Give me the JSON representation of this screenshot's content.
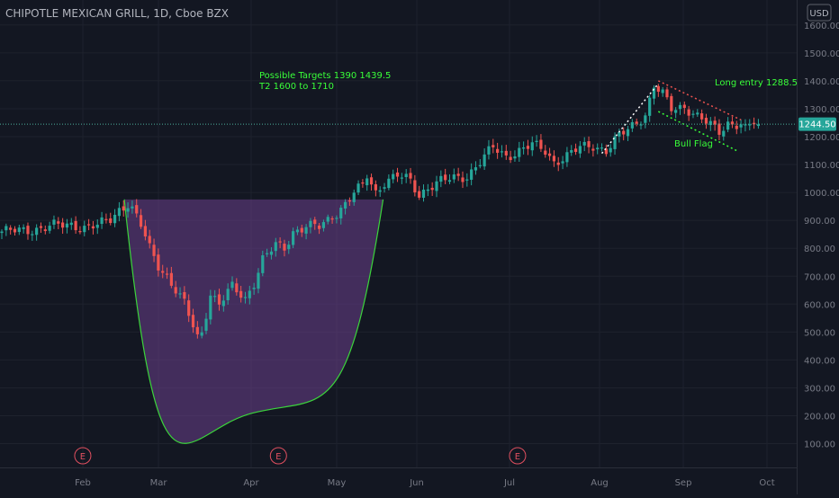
{
  "header": {
    "symbol_title": "CHIPOTLE MEXICAN GRILL, 1D, Cboe BZX"
  },
  "currency_badge": "USD",
  "last_price_label": "1244.50",
  "annotations": {
    "targets_line1": "Possible Targets  1390    1439.5",
    "targets_line2": "T2  1600 to 1710",
    "long_entry": "Long entry 1288.5",
    "bull_flag": "Bull Flag"
  },
  "earnings_marker": "E",
  "colors": {
    "background": "#131722",
    "up_candle": "#26a69a",
    "down_candle": "#ef5350",
    "cup_fill": "#6b3f8c",
    "cup_line": "#3bd43b",
    "annotation_text": "#39ff39",
    "price_badge": "#26a69a",
    "earnings_marker": "#e04f5f"
  },
  "chart_data": {
    "type": "candlestick",
    "title": "CHIPOTLE MEXICAN GRILL, 1D, Cboe BZX",
    "y_axis_ticks": [
      100,
      200,
      300,
      400,
      500,
      600,
      700,
      800,
      900,
      1000,
      1100,
      1200,
      1300,
      1400,
      1500,
      1600
    ],
    "y_tick_labels": [
      "100.00",
      "200.00",
      "300.00",
      "400.00",
      "500.00",
      "600.00",
      "700.00",
      "800.00",
      "900.00",
      "1000.00",
      "1100.00",
      "1200.00",
      "1300.00",
      "1400.00",
      "1500.00",
      "1600.00"
    ],
    "x_tick_labels": [
      "Feb",
      "Mar",
      "Apr",
      "May",
      "Jun",
      "Jul",
      "Aug",
      "Sep",
      "Oct"
    ],
    "ylim": [
      50,
      1660
    ],
    "last_price": 1244.5,
    "grid": true,
    "series_close_path": [
      [
        0,
        860
      ],
      [
        4,
        862
      ],
      [
        8,
        870
      ],
      [
        12,
        880
      ],
      [
        16,
        885
      ],
      [
        19,
        875
      ],
      [
        22,
        880
      ],
      [
        25,
        905
      ],
      [
        27,
        940
      ],
      [
        29,
        960
      ],
      [
        30,
        940
      ],
      [
        32,
        880
      ],
      [
        34,
        800
      ],
      [
        36,
        740
      ],
      [
        38,
        700
      ],
      [
        40,
        650
      ],
      [
        42,
        600
      ],
      [
        43,
        560
      ],
      [
        45,
        480
      ],
      [
        46,
        500
      ],
      [
        48,
        640
      ],
      [
        50,
        600
      ],
      [
        53,
        660
      ],
      [
        56,
        620
      ],
      [
        58,
        680
      ],
      [
        60,
        760
      ],
      [
        63,
        810
      ],
      [
        65,
        800
      ],
      [
        67,
        860
      ],
      [
        70,
        880
      ],
      [
        73,
        875
      ],
      [
        75,
        900
      ],
      [
        77,
        930
      ],
      [
        79,
        960
      ],
      [
        81,
        1000
      ],
      [
        83,
        1020
      ],
      [
        84,
        1060
      ],
      [
        86,
        1000
      ],
      [
        88,
        1040
      ],
      [
        91,
        1060
      ],
      [
        94,
        1040
      ],
      [
        96,
        990
      ],
      [
        98,
        1020
      ],
      [
        101,
        1040
      ],
      [
        104,
        1050
      ],
      [
        107,
        1060
      ],
      [
        110,
        1110
      ],
      [
        113,
        1160
      ],
      [
        116,
        1130
      ],
      [
        119,
        1150
      ],
      [
        122,
        1170
      ],
      [
        125,
        1150
      ],
      [
        127,
        1110
      ],
      [
        130,
        1130
      ],
      [
        133,
        1160
      ],
      [
        136,
        1170
      ],
      [
        139,
        1150
      ],
      [
        142,
        1200
      ],
      [
        145,
        1240
      ],
      [
        148,
        1280
      ],
      [
        150,
        1380
      ],
      [
        152,
        1350
      ],
      [
        154,
        1300
      ],
      [
        157,
        1310
      ],
      [
        160,
        1270
      ],
      [
        163,
        1240
      ],
      [
        165,
        1220
      ],
      [
        167,
        1250
      ],
      [
        169,
        1244
      ]
    ],
    "cup": {
      "left": [
        29,
        975
      ],
      "bottom": [
        54,
        210
      ],
      "right": [
        79,
        975
      ]
    },
    "flagpole": {
      "start": [
        138,
        1140
      ],
      "end": [
        151,
        1390
      ]
    },
    "flag_upper": {
      "start": [
        151,
        1400
      ],
      "end": [
        170,
        1260
      ]
    },
    "flag_lower": {
      "start": [
        151,
        1290
      ],
      "end": [
        169,
        1150
      ]
    },
    "earnings_x": [
      18,
      63,
      118
    ]
  }
}
